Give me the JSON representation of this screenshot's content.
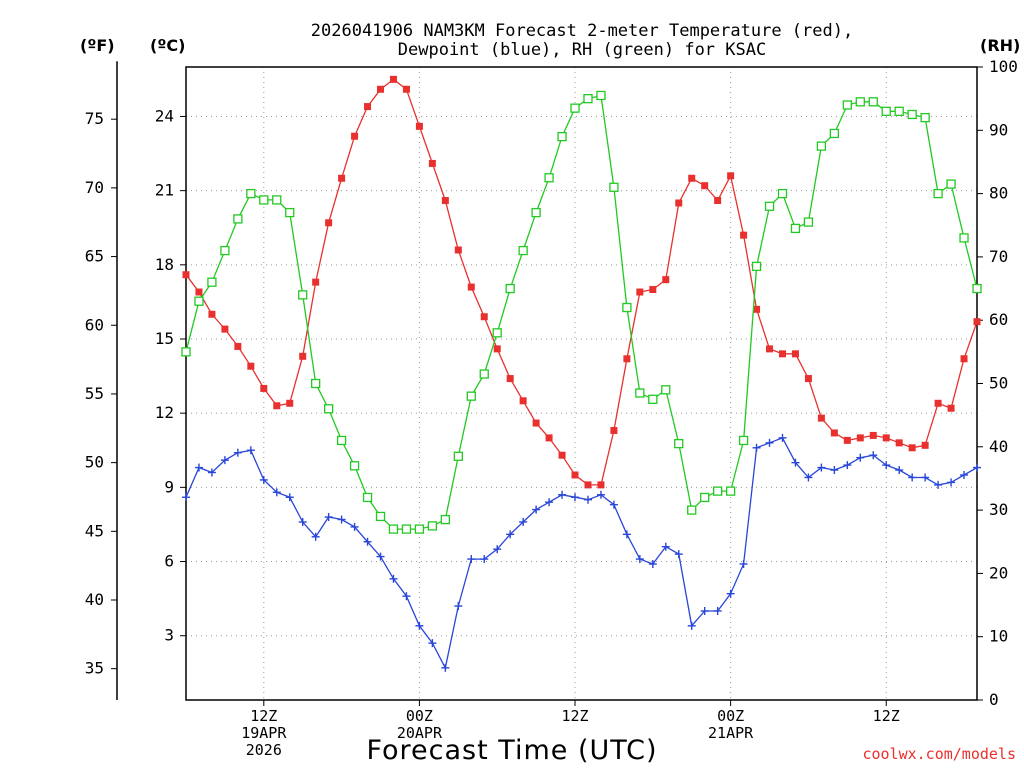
{
  "chart_data": {
    "type": "line",
    "title_lines": [
      "2026041906 NAM3KM Forecast 2-meter Temperature (red),",
      "Dewpoint (blue), RH (green) for KSAC"
    ],
    "xlabel": "Forecast Time (UTC)",
    "credit": "coolwx.com/models",
    "units": {
      "fahrenheit": "(ºF)",
      "celsius": "(ºC)",
      "rh": "(RH)"
    },
    "hours": [
      0,
      1,
      2,
      3,
      4,
      5,
      6,
      7,
      8,
      9,
      10,
      11,
      12,
      13,
      14,
      15,
      16,
      17,
      18,
      19,
      20,
      21,
      22,
      23,
      24,
      25,
      26,
      27,
      28,
      29,
      30,
      31,
      32,
      33,
      34,
      35,
      36,
      37,
      38,
      39,
      40,
      41,
      42,
      43,
      44,
      45,
      46,
      47,
      48,
      49,
      50,
      51,
      52,
      53,
      54,
      55,
      56,
      57,
      58,
      59,
      60,
      61
    ],
    "celsius_axis": {
      "range": [
        0.4,
        26.0
      ],
      "ticks": [
        3,
        6,
        9,
        12,
        15,
        18,
        21,
        24
      ]
    },
    "fahrenheit_axis": {
      "ticks": [
        35,
        40,
        45,
        50,
        55,
        60,
        65,
        70,
        75
      ]
    },
    "rh_axis": {
      "range": [
        0,
        100
      ],
      "ticks": [
        0,
        10,
        20,
        30,
        40,
        50,
        60,
        70,
        80,
        90,
        100
      ]
    },
    "x_ticks": [
      {
        "hour": 6,
        "lines": [
          "12Z",
          "19APR",
          "2026"
        ]
      },
      {
        "hour": 18,
        "lines": [
          "00Z",
          "20APR"
        ]
      },
      {
        "hour": 30,
        "lines": [
          "12Z"
        ]
      },
      {
        "hour": 42,
        "lines": [
          "00Z",
          "21APR"
        ]
      },
      {
        "hour": 54,
        "lines": [
          "12Z"
        ]
      }
    ],
    "series": [
      {
        "name": "2-meter Temperature (°C)",
        "axis": "celsius",
        "color": "#e8312e",
        "marker": "filled-square",
        "values": [
          17.6,
          16.9,
          16.0,
          15.4,
          14.7,
          13.9,
          13.0,
          12.3,
          12.4,
          14.3,
          17.3,
          19.7,
          21.5,
          23.2,
          24.4,
          25.1,
          25.5,
          25.1,
          23.6,
          22.1,
          20.6,
          18.6,
          17.1,
          15.9,
          14.6,
          13.4,
          12.5,
          11.6,
          11.0,
          10.3,
          9.5,
          9.1,
          9.1,
          11.3,
          14.2,
          16.9,
          17.0,
          17.4,
          20.5,
          21.5,
          21.2,
          20.6,
          21.6,
          19.2,
          16.2,
          14.6,
          14.4,
          14.4,
          13.4,
          11.8,
          11.2,
          10.9,
          11.0,
          11.1,
          11.0,
          10.8,
          10.6,
          10.7,
          12.4,
          12.2,
          14.2,
          15.7
        ]
      },
      {
        "name": "Dewpoint (°C)",
        "axis": "celsius",
        "color": "#2846d8",
        "marker": "plus",
        "values": [
          8.6,
          9.8,
          9.6,
          10.1,
          10.4,
          10.5,
          9.3,
          8.8,
          8.6,
          7.6,
          7.0,
          7.8,
          7.7,
          7.4,
          6.8,
          6.2,
          5.3,
          4.6,
          3.4,
          2.7,
          1.7,
          4.2,
          6.1,
          6.1,
          6.5,
          7.1,
          7.6,
          8.1,
          8.4,
          8.7,
          8.6,
          8.5,
          8.7,
          8.3,
          7.1,
          6.1,
          5.9,
          6.6,
          6.3,
          3.4,
          4.0,
          4.0,
          4.7,
          5.9,
          10.6,
          10.8,
          11.0,
          10.0,
          9.4,
          9.8,
          9.7,
          9.9,
          10.2,
          10.3,
          9.9,
          9.7,
          9.4,
          9.4,
          9.1,
          9.2,
          9.5,
          9.8
        ]
      },
      {
        "name": "RH (%)",
        "axis": "rh",
        "color": "#22c922",
        "marker": "open-square",
        "values": [
          55,
          63,
          66,
          71,
          76,
          80,
          79,
          79,
          77,
          64,
          50,
          46,
          41,
          37,
          32,
          29,
          27,
          27,
          27,
          27.5,
          28.5,
          38.5,
          48,
          51.5,
          58,
          65,
          71,
          77,
          82.5,
          89,
          93.5,
          95,
          95.5,
          81,
          62,
          48.5,
          47.5,
          49,
          40.5,
          30,
          32,
          33,
          33,
          41,
          68.5,
          78,
          80,
          74.5,
          75.5,
          87.5,
          89.5,
          94,
          94.5,
          94.5,
          93,
          93,
          92.5,
          92,
          80,
          81.5,
          73,
          65
        ]
      }
    ]
  }
}
